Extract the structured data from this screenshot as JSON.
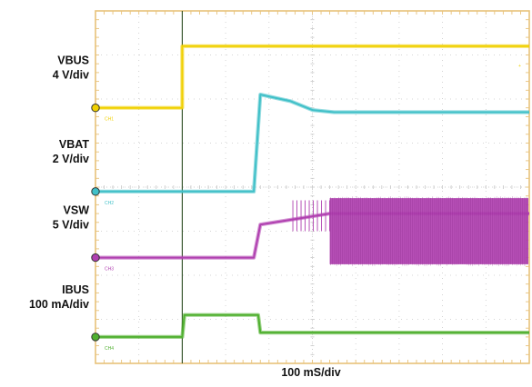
{
  "chart_data": {
    "type": "line",
    "title": "",
    "xlabel": "100 mS/div",
    "x_divisions": 10,
    "y_divisions": 8,
    "x_unit_per_div_ms": 100,
    "grid": true,
    "border_color": "#e8c27a",
    "grid_color": "#c8c8c8",
    "series": [
      {
        "name": "VBUS",
        "scale": "4 V/div",
        "color": "#f0d000",
        "ground_div": 2.2,
        "tag": "CH1",
        "points": [
          [
            0,
            0
          ],
          [
            2.0,
            0
          ],
          [
            2.0,
            1.4
          ],
          [
            10,
            1.4
          ]
        ]
      },
      {
        "name": "VBAT",
        "scale": "2 V/div",
        "color": "#40c0c8",
        "ground_div": 4.1,
        "tag": "CH2",
        "points": [
          [
            0,
            0
          ],
          [
            3.65,
            0
          ],
          [
            3.8,
            2.2
          ],
          [
            4.5,
            2.05
          ],
          [
            5.0,
            1.85
          ],
          [
            5.5,
            1.8
          ],
          [
            10,
            1.8
          ]
        ]
      },
      {
        "name": "VSW",
        "scale": "5 V/div",
        "color": "#b040b0",
        "ground_div": 5.6,
        "tag": "CH3",
        "switching_start": 5.4,
        "switching_amplitude": 1.0,
        "points": [
          [
            0,
            0
          ],
          [
            3.65,
            0
          ],
          [
            3.8,
            0.75
          ],
          [
            5.4,
            1.0
          ],
          [
            10,
            1.0
          ]
        ]
      },
      {
        "name": "IBUS",
        "scale": "100 mA/div",
        "color": "#50b030",
        "ground_div": 7.4,
        "tag": "CH4",
        "points": [
          [
            0,
            0
          ],
          [
            2.0,
            0
          ],
          [
            2.05,
            0.5
          ],
          [
            3.75,
            0.5
          ],
          [
            3.8,
            0.1
          ],
          [
            10,
            0.1
          ]
        ]
      }
    ]
  }
}
